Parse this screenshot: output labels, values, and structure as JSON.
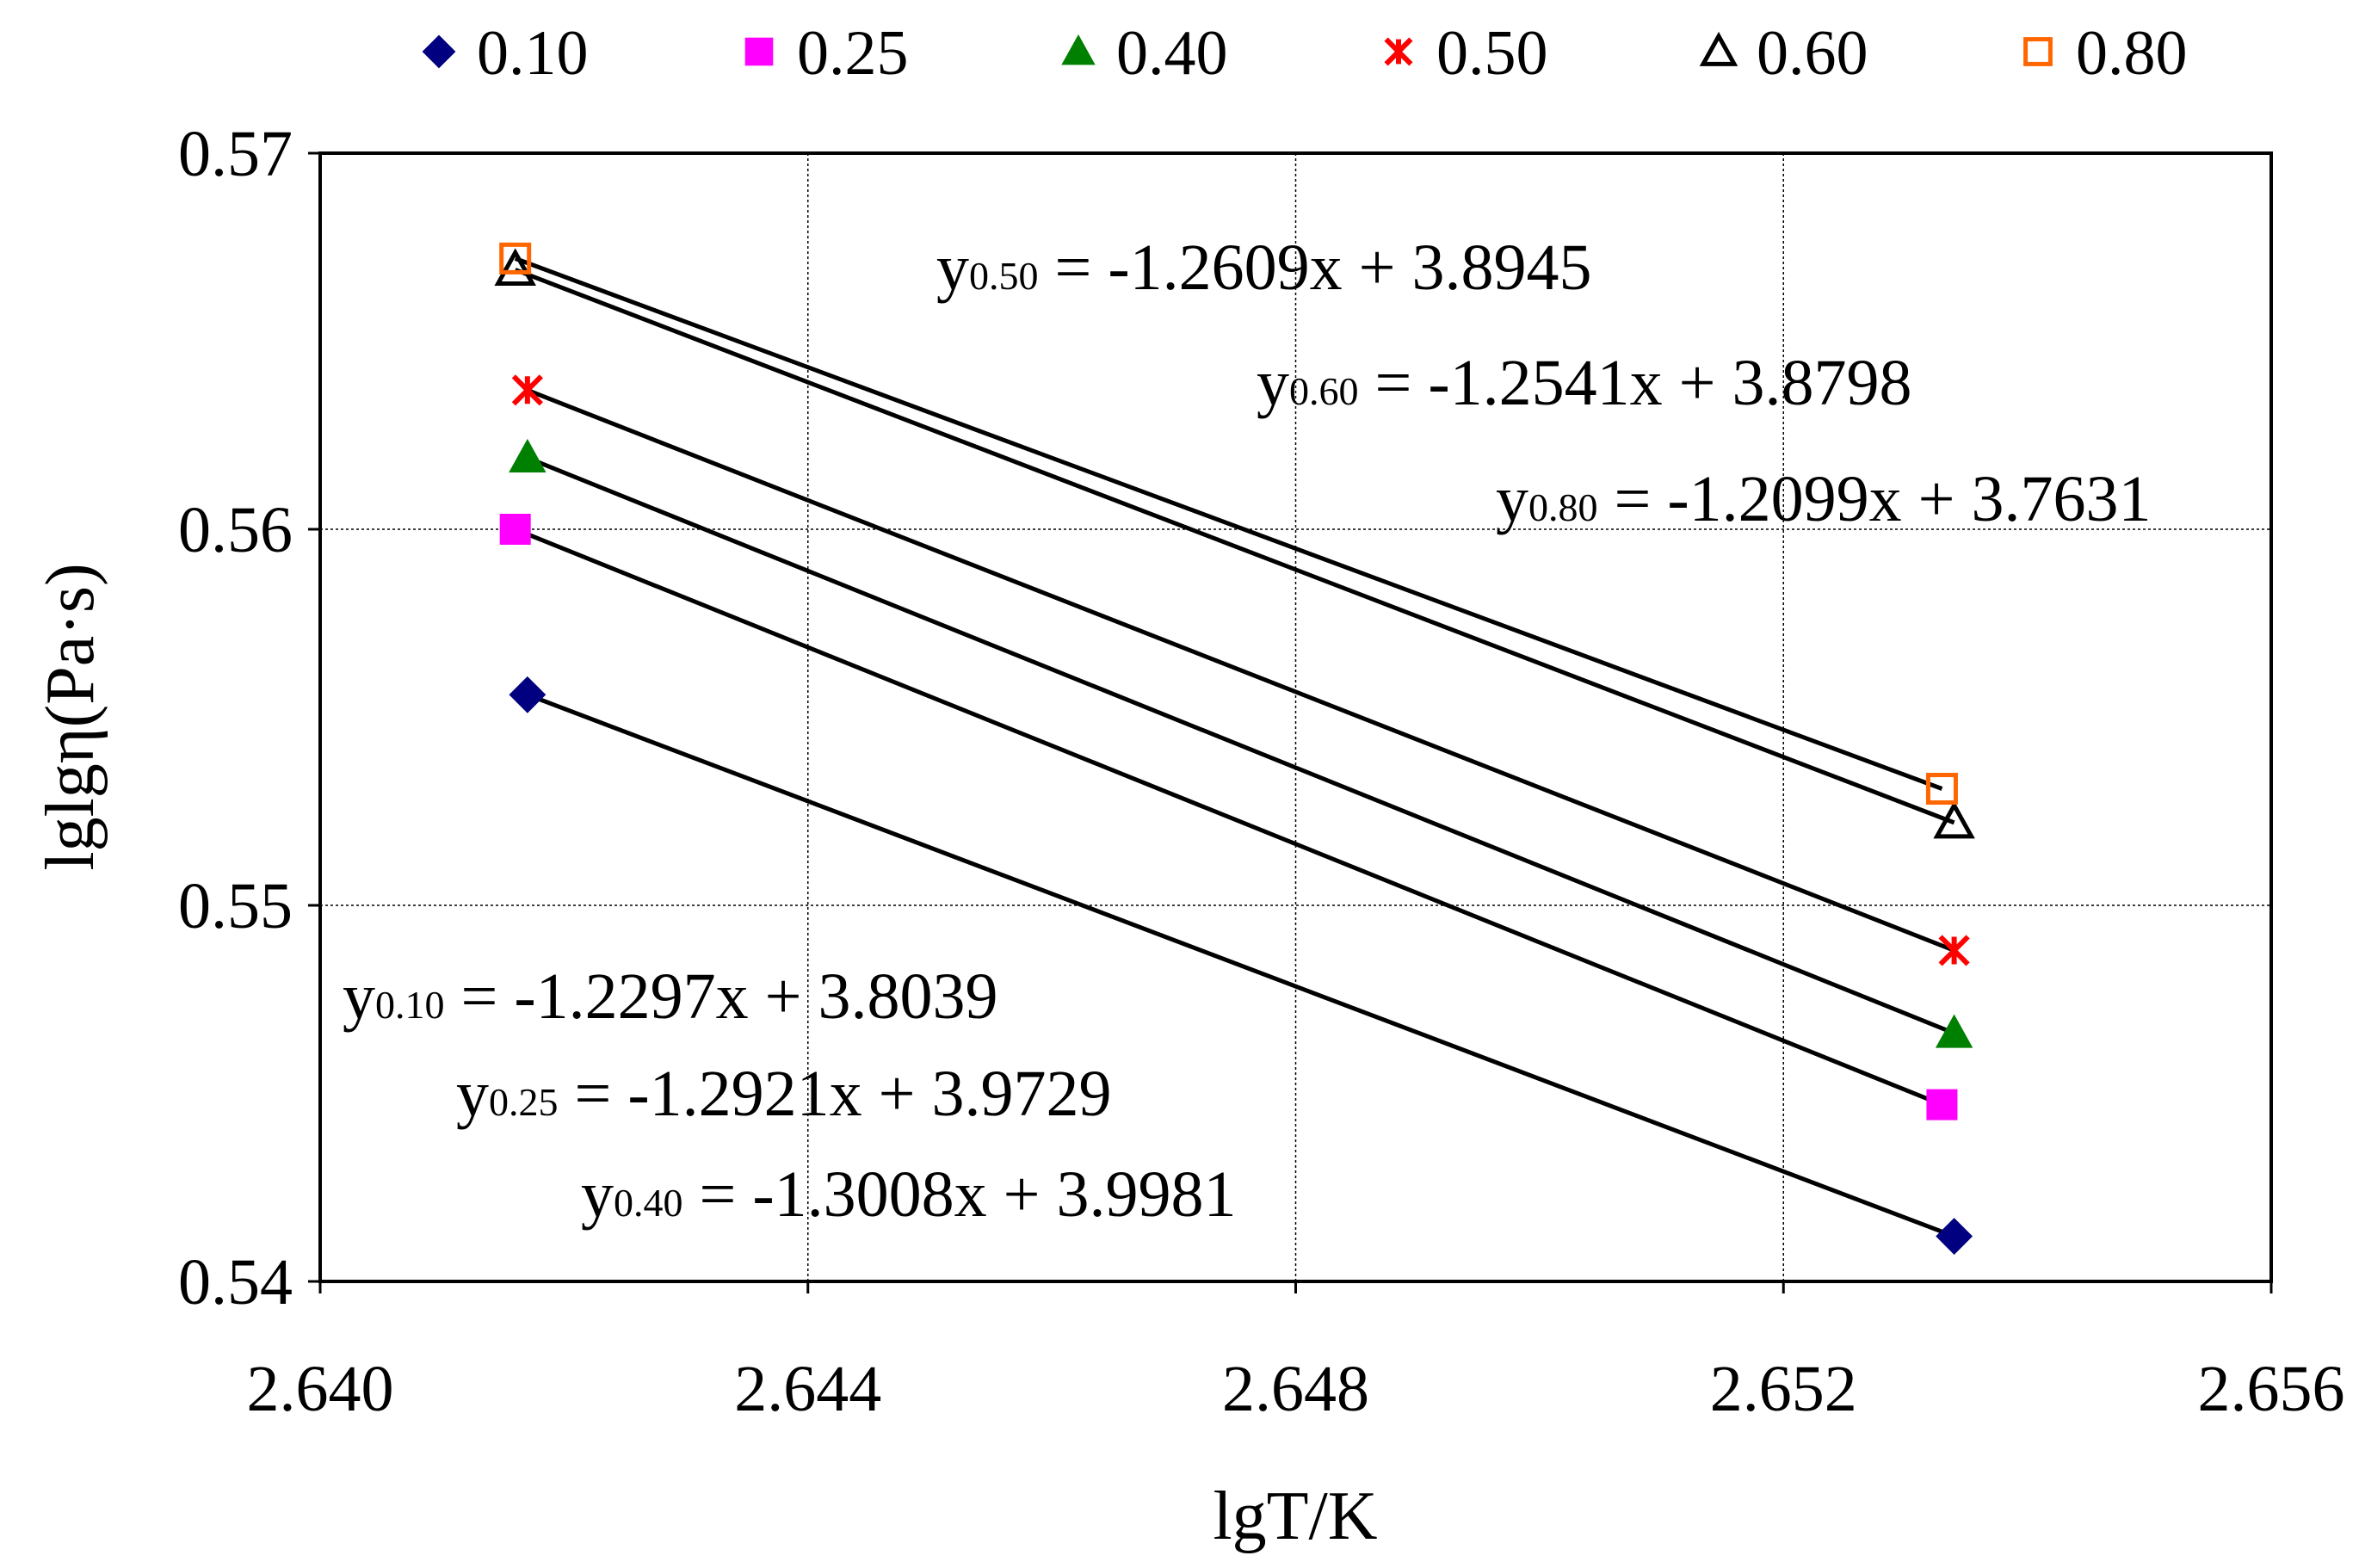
{
  "chart_data": {
    "type": "scatter",
    "title": "",
    "xlabel": "lgT/K",
    "ylabel": "lglgη(Pa·s)",
    "xlim": [
      2.64,
      2.656
    ],
    "ylim": [
      0.54,
      0.57
    ],
    "xticks": [
      "2.640",
      "2.644",
      "2.648",
      "2.652",
      "2.656"
    ],
    "yticks": [
      "0.54",
      "0.55",
      "0.56",
      "0.57"
    ],
    "grid": true,
    "legend_position": "top",
    "series": [
      {
        "name": "0.10",
        "marker": "diamond",
        "color": "#000080",
        "x": [
          2.6417,
          2.6534
        ],
        "y": [
          0.5556,
          0.5412
        ],
        "fit": {
          "label": "y",
          "subscript": "0.10",
          "text": " = -1.2297x + 3.8039"
        }
      },
      {
        "name": "0.25",
        "marker": "square",
        "color": "#FF00FF",
        "x": [
          2.6416,
          2.6533
        ],
        "y": [
          0.56,
          0.5447
        ],
        "fit": {
          "label": "y",
          "subscript": "0.25",
          "text": " = -1.2921x + 3.9729"
        }
      },
      {
        "name": "0.40",
        "marker": "triangle",
        "color": "#008000",
        "x": [
          2.6417,
          2.6534
        ],
        "y": [
          0.5619,
          0.5466
        ],
        "fit": {
          "label": "y",
          "subscript": "0.40",
          "text": " = -1.3008x + 3.9981"
        }
      },
      {
        "name": "0.50",
        "marker": "star",
        "color": "#FF0000",
        "x": [
          2.6417,
          2.6534
        ],
        "y": [
          0.5637,
          0.5488
        ],
        "fit": {
          "label": "y",
          "subscript": "0.50",
          "text": " = -1.2609x + 3.8945"
        }
      },
      {
        "name": "0.60",
        "marker": "triangle-open",
        "color": "#000000",
        "x": [
          2.6416,
          2.6534
        ],
        "y": [
          0.5669,
          0.5522
        ],
        "fit": {
          "label": "y",
          "subscript": "0.60",
          "text": " = -1.2541x + 3.8798"
        }
      },
      {
        "name": "0.80",
        "marker": "square-open",
        "color": "#FF6600",
        "x": [
          2.6416,
          2.6533
        ],
        "y": [
          0.5672,
          0.5531
        ],
        "fit": {
          "label": "y",
          "subscript": "0.80",
          "text": " = -1.2099x + 3.7631"
        }
      }
    ]
  }
}
